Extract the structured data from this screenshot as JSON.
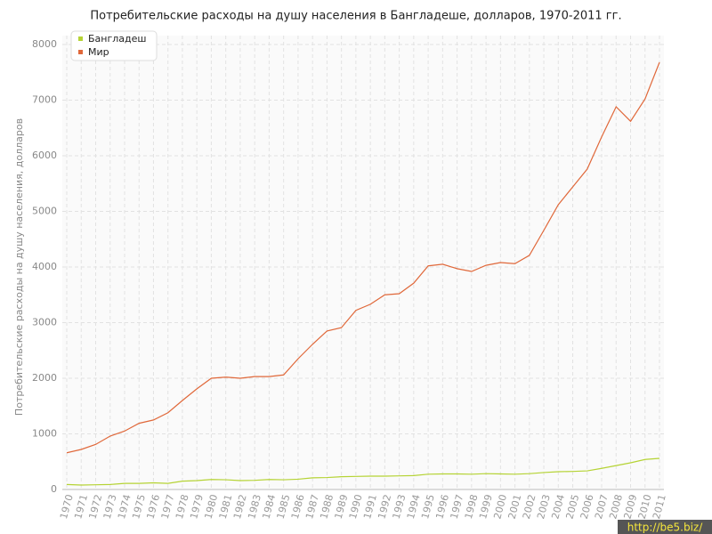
{
  "chart_data": {
    "type": "line",
    "title": "Потребительские расходы на душу населения в Бангладеше, долларов, 1970-2011 гг.",
    "y_label": "Потребительские расходы на душу населения, долларов",
    "categories": [
      "1970",
      "1971",
      "1972",
      "1973",
      "1974",
      "1975",
      "1976",
      "1977",
      "1978",
      "1979",
      "1980",
      "1981",
      "1982",
      "1983",
      "1984",
      "1985",
      "1986",
      "1987",
      "1988",
      "1989",
      "1990",
      "1991",
      "1992",
      "1993",
      "1994",
      "1995",
      "1996",
      "1997",
      "1998",
      "1999",
      "2000",
      "2001",
      "2002",
      "2003",
      "2004",
      "2005",
      "2006",
      "2007",
      "2008",
      "2009",
      "2010",
      "2011"
    ],
    "series": [
      {
        "name": "Бангладеш",
        "color": "#b5d334",
        "values": [
          90,
          80,
          85,
          90,
          110,
          110,
          120,
          110,
          150,
          160,
          180,
          175,
          160,
          165,
          180,
          175,
          185,
          210,
          215,
          230,
          235,
          240,
          240,
          245,
          250,
          275,
          280,
          280,
          275,
          285,
          280,
          275,
          285,
          305,
          320,
          325,
          335,
          380,
          430,
          480,
          540,
          560
        ]
      },
      {
        "name": "Мир",
        "color": "#e0683a",
        "values": [
          660,
          720,
          810,
          960,
          1050,
          1190,
          1250,
          1380,
          1600,
          1810,
          2000,
          2020,
          2000,
          2030,
          2030,
          2060,
          2350,
          2610,
          2850,
          2910,
          3220,
          3330,
          3500,
          3520,
          3710,
          4020,
          4050,
          3970,
          3920,
          4030,
          4080,
          4060,
          4210,
          4660,
          5120,
          5440,
          5760,
          6340,
          6880,
          6620,
          7020,
          7680
        ]
      }
    ],
    "ylim": [
      0,
      8000
    ],
    "yticks": [
      0,
      1000,
      2000,
      3000,
      4000,
      5000,
      6000,
      7000,
      8000
    ],
    "grid": true,
    "legend": "top-left"
  },
  "watermark": "http://be5.biz/"
}
